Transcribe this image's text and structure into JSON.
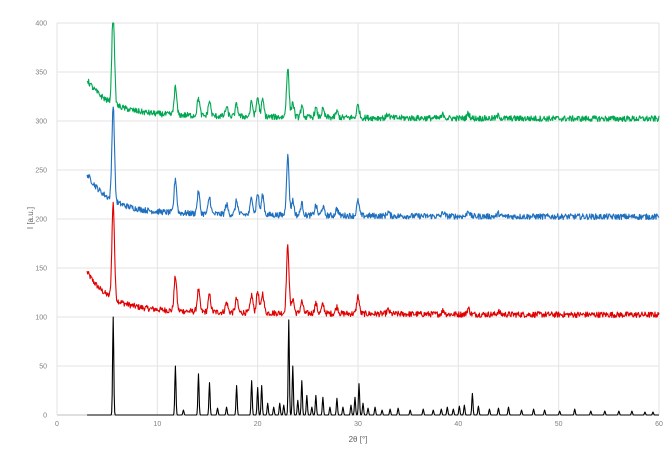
{
  "chart_data": {
    "type": "line",
    "title": "",
    "xlabel": "2θ [°]",
    "ylabel": "I [a.u.]",
    "xlim": [
      0,
      60
    ],
    "ylim": [
      0,
      400
    ],
    "xticks": [
      0,
      10,
      20,
      30,
      40,
      50,
      60
    ],
    "yticks": [
      0,
      50,
      100,
      150,
      200,
      250,
      300,
      350,
      400
    ],
    "grid": true,
    "legend": "none",
    "series": [
      {
        "color": "#000000",
        "baseline": 0,
        "x_range": [
          3,
          60
        ],
        "noise": 0,
        "peaks": [
          [
            5.6,
            100
          ],
          [
            11.8,
            50
          ],
          [
            12.6,
            5
          ],
          [
            14.1,
            42
          ],
          [
            15.2,
            33
          ],
          [
            16.0,
            7
          ],
          [
            16.9,
            8
          ],
          [
            17.9,
            30
          ],
          [
            19.4,
            35
          ],
          [
            20.0,
            28
          ],
          [
            20.4,
            30
          ],
          [
            21.0,
            12
          ],
          [
            21.6,
            8
          ],
          [
            22.2,
            12
          ],
          [
            22.6,
            10
          ],
          [
            23.1,
            97
          ],
          [
            23.5,
            50
          ],
          [
            24.0,
            15
          ],
          [
            24.4,
            35
          ],
          [
            24.9,
            20
          ],
          [
            25.4,
            8
          ],
          [
            25.8,
            20
          ],
          [
            26.5,
            18
          ],
          [
            27.2,
            8
          ],
          [
            27.9,
            17
          ],
          [
            28.5,
            8
          ],
          [
            29.3,
            10
          ],
          [
            29.7,
            18
          ],
          [
            30.1,
            32
          ],
          [
            30.5,
            12
          ],
          [
            31.0,
            7
          ],
          [
            31.7,
            8
          ],
          [
            32.4,
            5
          ],
          [
            33.2,
            6
          ],
          [
            34.0,
            7
          ],
          [
            35.2,
            5
          ],
          [
            36.5,
            6
          ],
          [
            37.5,
            5
          ],
          [
            38.3,
            6
          ],
          [
            38.9,
            8
          ],
          [
            39.5,
            6
          ],
          [
            40.1,
            9
          ],
          [
            40.6,
            10
          ],
          [
            41.4,
            22
          ],
          [
            42.0,
            9
          ],
          [
            43.1,
            6
          ],
          [
            44.0,
            7
          ],
          [
            45.0,
            8
          ],
          [
            46.3,
            5
          ],
          [
            47.5,
            6
          ],
          [
            48.6,
            5
          ],
          [
            50.1,
            4
          ],
          [
            51.6,
            6
          ],
          [
            53.2,
            4
          ],
          [
            54.6,
            4
          ],
          [
            56.0,
            4
          ],
          [
            57.3,
            4
          ],
          [
            58.6,
            3
          ],
          [
            59.4,
            3
          ]
        ]
      },
      {
        "color": "#e00000",
        "baseline": 102,
        "x_range": [
          3,
          60
        ],
        "noise": 3,
        "start_level": 38,
        "decay": 2.2,
        "peaks": [
          [
            5.6,
            97
          ],
          [
            11.8,
            35
          ],
          [
            14.1,
            22
          ],
          [
            15.2,
            17
          ],
          [
            16.9,
            10
          ],
          [
            17.9,
            14
          ],
          [
            19.4,
            18
          ],
          [
            20.0,
            22
          ],
          [
            20.5,
            20
          ],
          [
            23.0,
            68
          ],
          [
            23.5,
            15
          ],
          [
            24.4,
            12
          ],
          [
            25.8,
            10
          ],
          [
            26.5,
            9
          ],
          [
            27.9,
            7
          ],
          [
            30.0,
            18
          ],
          [
            33.0,
            4
          ],
          [
            38.5,
            4
          ],
          [
            41.0,
            6
          ],
          [
            44.0,
            3
          ]
        ]
      },
      {
        "color": "#1f6fbf",
        "baseline": 202,
        "x_range": [
          3,
          60
        ],
        "noise": 3,
        "start_level": 38,
        "decay": 2.2,
        "peaks": [
          [
            5.6,
            97
          ],
          [
            11.8,
            35
          ],
          [
            14.1,
            22
          ],
          [
            15.2,
            17
          ],
          [
            16.9,
            10
          ],
          [
            17.9,
            14
          ],
          [
            19.4,
            18
          ],
          [
            20.0,
            22
          ],
          [
            20.5,
            20
          ],
          [
            23.0,
            60
          ],
          [
            23.5,
            15
          ],
          [
            24.4,
            12
          ],
          [
            25.8,
            10
          ],
          [
            26.5,
            9
          ],
          [
            27.9,
            7
          ],
          [
            30.0,
            15
          ],
          [
            33.0,
            4
          ],
          [
            38.5,
            4
          ],
          [
            41.0,
            6
          ],
          [
            44.0,
            3
          ]
        ]
      },
      {
        "color": "#00a651",
        "baseline": 302,
        "x_range": [
          3,
          60
        ],
        "noise": 3,
        "start_level": 34,
        "decay": 2.2,
        "peaks": [
          [
            5.6,
            97
          ],
          [
            11.8,
            28
          ],
          [
            14.1,
            18
          ],
          [
            15.2,
            15
          ],
          [
            16.9,
            9
          ],
          [
            17.9,
            12
          ],
          [
            19.4,
            15
          ],
          [
            20.0,
            20
          ],
          [
            20.5,
            17
          ],
          [
            23.0,
            50
          ],
          [
            23.5,
            15
          ],
          [
            24.4,
            10
          ],
          [
            25.8,
            9
          ],
          [
            26.5,
            8
          ],
          [
            27.9,
            6
          ],
          [
            30.0,
            13
          ],
          [
            33.0,
            4
          ],
          [
            38.5,
            4
          ],
          [
            41.0,
            5
          ],
          [
            44.0,
            3
          ]
        ]
      }
    ]
  }
}
